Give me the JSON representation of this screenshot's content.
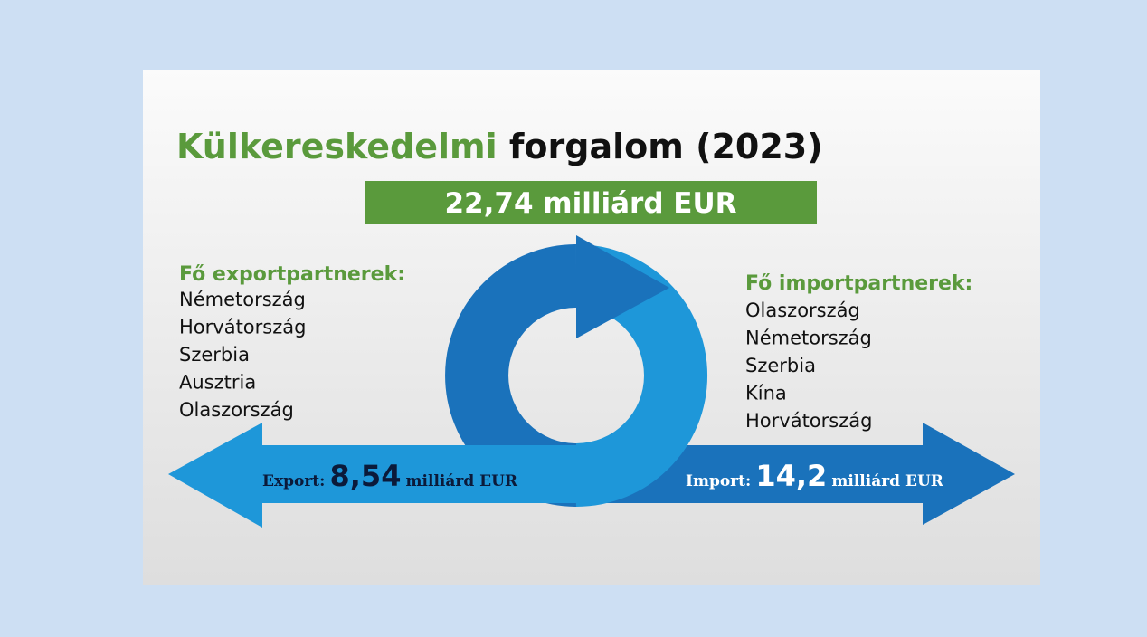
{
  "title": {
    "highlight": "Külkereskedelmi",
    "rest": "forgalom (2023)"
  },
  "total": "22,74 milliárd EUR",
  "export": {
    "heading": "Fő exportpartnerek:",
    "partners": [
      "Németország",
      "Horvátország",
      "Szerbia",
      "Ausztria",
      "Olaszország"
    ],
    "label": "Export:",
    "amount": "8,54",
    "unit": "milliárd EUR"
  },
  "import": {
    "heading": "Fő importpartnerek:",
    "partners": [
      "Olaszország",
      "Németország",
      "Szerbia",
      "Kína",
      "Horvátország"
    ],
    "label": "Import:",
    "amount": "14,2",
    "unit": "milliárd EUR"
  }
}
